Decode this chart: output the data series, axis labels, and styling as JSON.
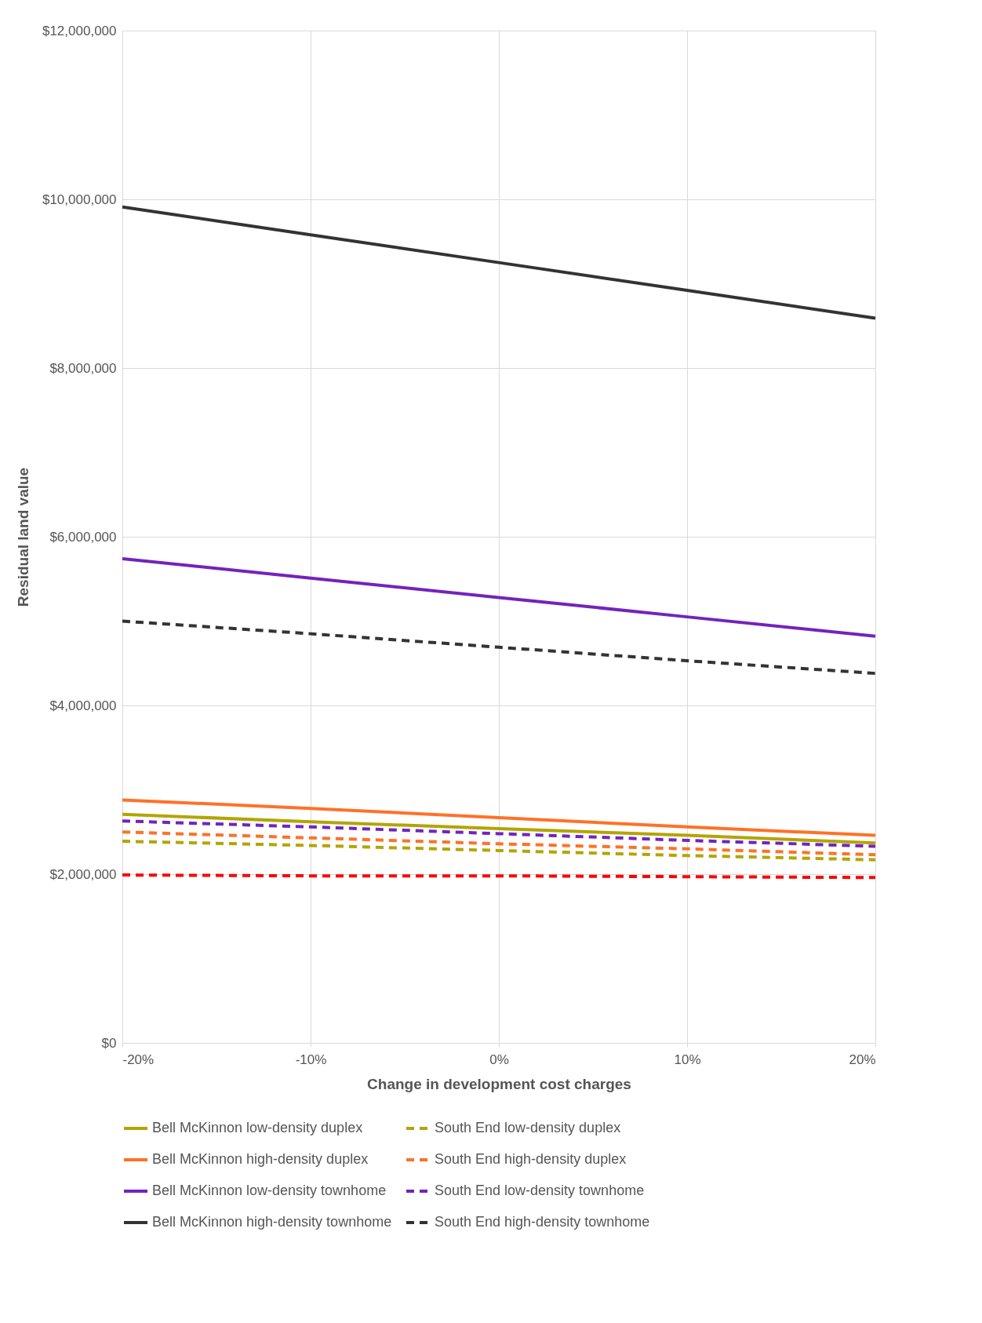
{
  "chart_data": {
    "type": "line",
    "xlabel": "Change in development cost charges",
    "ylabel": "Residual land value",
    "x": [
      -20,
      -10,
      0,
      10,
      20
    ],
    "xlim": [
      -20,
      20
    ],
    "xticks": [
      {
        "value": -20,
        "label": "-20%"
      },
      {
        "value": -10,
        "label": "-10%"
      },
      {
        "value": 0,
        "label": "0%"
      },
      {
        "value": 10,
        "label": "10%"
      },
      {
        "value": 20,
        "label": "20%"
      }
    ],
    "ylim": [
      0,
      12000000
    ],
    "yticks": [
      {
        "value": 0,
        "label": "$0"
      },
      {
        "value": 2000000,
        "label": "$2,000,000"
      },
      {
        "value": 4000000,
        "label": "$4,000,000"
      },
      {
        "value": 6000000,
        "label": "$6,000,000"
      },
      {
        "value": 8000000,
        "label": "$8,000,000"
      },
      {
        "value": 10000000,
        "label": "$10,000,000"
      },
      {
        "value": 12000000,
        "label": "$12,000,000"
      }
    ],
    "grid": true,
    "legend": "bottom",
    "marker": "none",
    "series": [
      {
        "name": "Bell McKinnon low-density duplex",
        "color": "#b3a500",
        "line_style": "solid",
        "values": [
          2710000,
          2620000,
          2540000,
          2460000,
          2370000
        ]
      },
      {
        "name": "South End low-density duplex",
        "color": "#b3a500",
        "line_style": "dashed",
        "values": [
          2390000,
          2340000,
          2280000,
          2220000,
          2170000
        ]
      },
      {
        "name": "Bell McKinnon high-density duplex",
        "color": "#ff7127",
        "line_style": "solid",
        "values": [
          2880000,
          2780000,
          2670000,
          2560000,
          2460000
        ]
      },
      {
        "name": "South End high-density duplex",
        "color": "#ff7127",
        "line_style": "dashed",
        "values": [
          2500000,
          2430000,
          2360000,
          2300000,
          2230000
        ]
      },
      {
        "name": "Bell McKinnon low-density townhome",
        "color": "#7323bd",
        "line_style": "solid",
        "values": [
          5740000,
          5510000,
          5280000,
          5050000,
          4820000
        ]
      },
      {
        "name": "South End low-density townhome",
        "color": "#7323bd",
        "line_style": "dashed",
        "values": [
          2630000,
          2560000,
          2480000,
          2400000,
          2330000
        ]
      },
      {
        "name": "Bell McKinnon high-density townhome",
        "color": "#333333",
        "line_style": "solid",
        "values": [
          9910000,
          9580000,
          9250000,
          8920000,
          8590000
        ]
      },
      {
        "name": "South End high-density townhome",
        "color": "#333333",
        "line_style": "dashed",
        "values": [
          5000000,
          4850000,
          4690000,
          4530000,
          4380000
        ]
      },
      {
        "color": "#ff0000",
        "line_style": "dashed",
        "values": [
          1990000,
          1980000,
          1980000,
          1970000,
          1960000
        ]
      }
    ]
  }
}
